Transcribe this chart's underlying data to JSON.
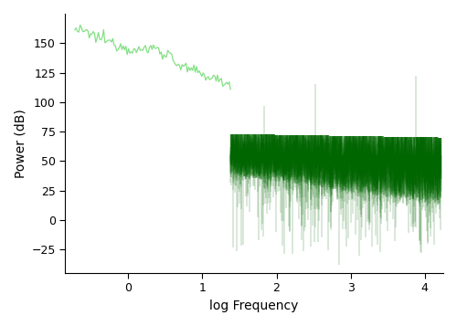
{
  "title": "",
  "xlabel": "log Frequency",
  "ylabel": "Power (dB)",
  "xlim": [
    -0.85,
    4.25
  ],
  "ylim": [
    -45,
    175
  ],
  "yticks": [
    -25,
    0,
    25,
    50,
    75,
    100,
    125,
    150
  ],
  "xticks": [
    0,
    1,
    2,
    3,
    4
  ],
  "line_color_light": "#77dd77",
  "line_color_dark": "#006600",
  "background_color": "#ffffff",
  "seed": 12345,
  "n_points_low": 120,
  "n_points_high": 8000
}
